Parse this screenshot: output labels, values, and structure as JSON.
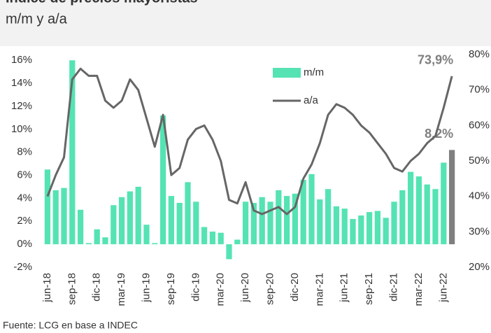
{
  "chart_data": {
    "type": "bar_line",
    "title": "Índice de precios mayoristas",
    "subtitle": "m/m y a/a",
    "source": "Fuente: LCG en base a INDEC",
    "categories": [
      "jun-18",
      null,
      null,
      "sep-18",
      null,
      null,
      "dic-18",
      null,
      null,
      "mar-19",
      null,
      null,
      "jun-19",
      null,
      null,
      "sep-19",
      null,
      null,
      "dic-19",
      null,
      null,
      "mar-20",
      null,
      null,
      "jun-20",
      null,
      null,
      "sep-20",
      null,
      null,
      "dic-20",
      null,
      null,
      "mar-21",
      null,
      null,
      "jun-21",
      null,
      null,
      "sep-21",
      null,
      null,
      "dic-21",
      null,
      null,
      "mar-22",
      null,
      null,
      "jun-22",
      null
    ],
    "series": [
      {
        "name": "m/m",
        "colors": [
          "#55e3b4",
          "#55e3b4",
          "#55e3b4",
          "#55e3b4",
          "#55e3b4",
          "#55e3b4",
          "#55e3b4",
          "#55e3b4",
          "#55e3b4",
          "#55e3b4",
          "#55e3b4",
          "#55e3b4",
          "#55e3b4",
          "#55e3b4",
          "#55e3b4",
          "#55e3b4",
          "#55e3b4",
          "#55e3b4",
          "#55e3b4",
          "#55e3b4",
          "#55e3b4",
          "#55e3b4",
          "#55e3b4",
          "#55e3b4",
          "#55e3b4",
          "#55e3b4",
          "#55e3b4",
          "#55e3b4",
          "#55e3b4",
          "#55e3b4",
          "#55e3b4",
          "#55e3b4",
          "#55e3b4",
          "#55e3b4",
          "#55e3b4",
          "#55e3b4",
          "#55e3b4",
          "#55e3b4",
          "#55e3b4",
          "#55e3b4",
          "#55e3b4",
          "#55e3b4",
          "#55e3b4",
          "#55e3b4",
          "#55e3b4",
          "#55e3b4",
          "#55e3b4",
          "#55e3b4",
          "#55e3b4",
          "#7f7f7f"
        ],
        "values": [
          6.5,
          4.7,
          4.9,
          16.0,
          3.0,
          0.1,
          1.3,
          0.6,
          3.4,
          4.1,
          4.6,
          5.0,
          1.7,
          0.1,
          11.2,
          4.2,
          3.6,
          5.4,
          3.7,
          1.5,
          1.1,
          1.0,
          -1.3,
          0.4,
          3.7,
          3.6,
          4.1,
          3.7,
          4.7,
          4.2,
          4.4,
          5.6,
          6.1,
          3.9,
          4.8,
          3.3,
          3.1,
          2.2,
          2.5,
          2.8,
          2.9,
          2.3,
          3.7,
          4.7,
          6.3,
          5.9,
          5.2,
          4.8,
          7.1,
          8.2
        ],
        "value_labels": [
          null,
          null,
          null,
          null,
          null,
          null,
          null,
          null,
          null,
          null,
          null,
          null,
          null,
          null,
          null,
          null,
          null,
          null,
          null,
          null,
          null,
          null,
          null,
          null,
          null,
          null,
          null,
          null,
          null,
          null,
          null,
          null,
          null,
          null,
          null,
          null,
          null,
          null,
          null,
          null,
          null,
          null,
          null,
          null,
          null,
          null,
          null,
          null,
          null,
          "8,2%"
        ]
      },
      {
        "name": "a/a",
        "color": "#666666",
        "axis": "y2",
        "values": [
          40,
          46,
          51,
          73,
          76,
          74,
          74,
          67,
          65,
          67,
          73,
          70,
          62,
          54,
          63,
          46,
          48,
          56,
          59,
          60,
          56,
          50,
          39,
          38,
          44,
          36,
          35,
          36,
          37,
          35,
          37,
          45,
          49,
          55,
          63,
          66,
          65,
          63,
          60,
          58,
          55,
          52,
          48,
          47,
          50,
          52,
          55,
          57,
          65,
          73.9
        ],
        "value_labels": [
          null,
          null,
          null,
          null,
          null,
          null,
          null,
          null,
          null,
          null,
          null,
          null,
          null,
          null,
          null,
          null,
          null,
          null,
          null,
          null,
          null,
          null,
          null,
          null,
          null,
          null,
          null,
          null,
          null,
          null,
          null,
          null,
          null,
          null,
          null,
          null,
          null,
          null,
          null,
          null,
          null,
          null,
          null,
          null,
          null,
          null,
          null,
          null,
          null,
          "73,9%"
        ]
      }
    ],
    "ylim": [
      -2,
      16.5
    ],
    "yticks": [
      {
        "value": -2,
        "label": "-2%"
      },
      {
        "value": 0,
        "label": "0%"
      },
      {
        "value": 2,
        "label": "2%"
      },
      {
        "value": 4,
        "label": "4%"
      },
      {
        "value": 6,
        "label": "6%"
      },
      {
        "value": 8,
        "label": "8%"
      },
      {
        "value": 10,
        "label": "10%"
      },
      {
        "value": 12,
        "label": "12%"
      },
      {
        "value": 14,
        "label": "14%"
      },
      {
        "value": 16,
        "label": "16%"
      }
    ],
    "y2lim": [
      20,
      80
    ],
    "y2ticks": [
      {
        "value": 20,
        "label": "20%"
      },
      {
        "value": 30,
        "label": "30%"
      },
      {
        "value": 40,
        "label": "40%"
      },
      {
        "value": 50,
        "label": "50%"
      },
      {
        "value": 60,
        "label": "60%"
      },
      {
        "value": 70,
        "label": "70%"
      },
      {
        "value": 80,
        "label": "80%"
      }
    ]
  }
}
